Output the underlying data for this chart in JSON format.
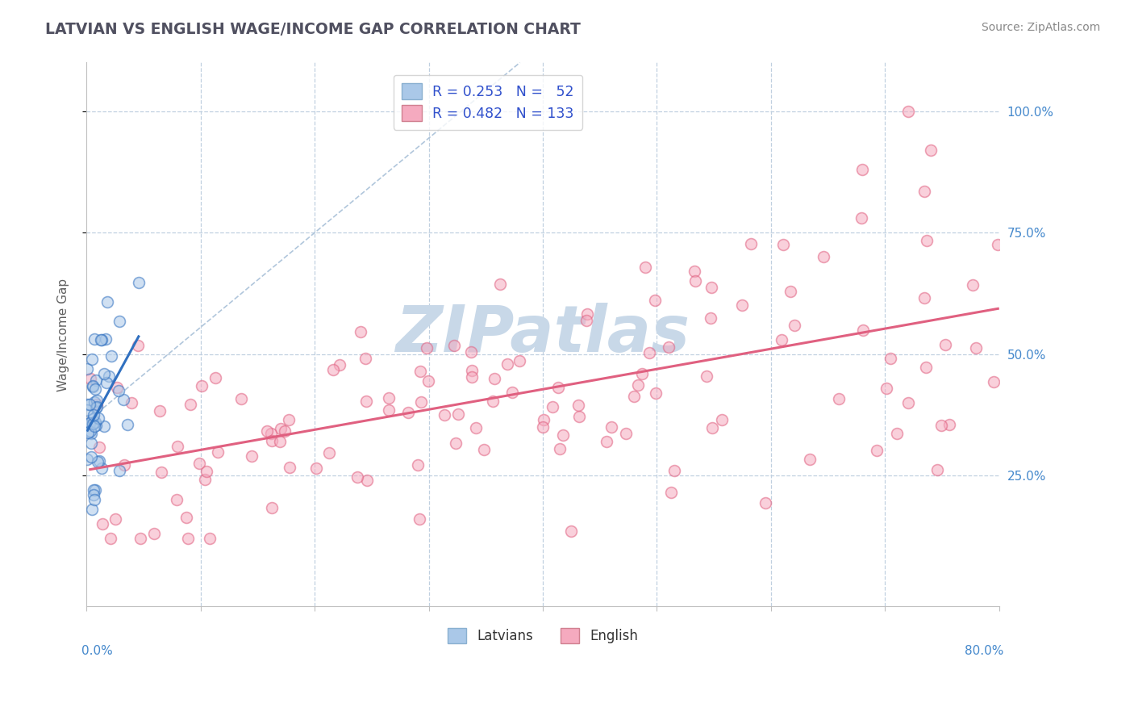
{
  "title": "LATVIAN VS ENGLISH WAGE/INCOME GAP CORRELATION CHART",
  "source_text": "Source: ZipAtlas.com",
  "ylabel": "Wage/Income Gap",
  "ytick_labels": [
    "25.0%",
    "50.0%",
    "75.0%",
    "100.0%"
  ],
  "ytick_values": [
    0.25,
    0.5,
    0.75,
    1.0
  ],
  "R_latvian": 0.253,
  "N_latvian": 52,
  "R_english": 0.482,
  "N_english": 133,
  "latvian_color": "#aac8e8",
  "english_color": "#f5aabf",
  "latvian_line_color": "#3070c0",
  "english_line_color": "#e06080",
  "diagonal_color": "#a8c0d8",
  "title_color": "#505060",
  "legend_text_color": "#3050cc",
  "background_color": "#ffffff",
  "grid_color": "#c0d0e0",
  "watermark_color": "#c8d8e8",
  "xlim": [
    0.0,
    0.8
  ],
  "ylim": [
    -0.02,
    1.1
  ],
  "marker_size": 100,
  "marker_alpha": 0.55,
  "marker_linewidth": 1.2
}
